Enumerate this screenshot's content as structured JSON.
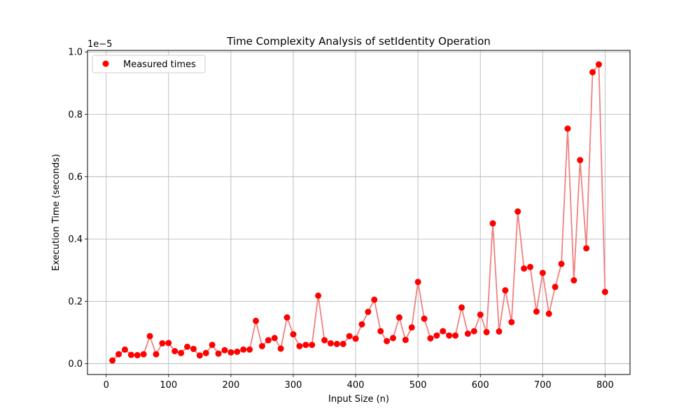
{
  "chart_data": {
    "type": "scatter",
    "title": "Time Complexity Analysis of setIdentity Operation",
    "xlabel": "Input Size (n)",
    "ylabel": "Execution Time (seconds)",
    "y_scale_label": "1e−5",
    "xlim": [
      -30,
      840
    ],
    "ylim": [
      -0.035,
      1.005
    ],
    "x_ticks": [
      0,
      100,
      200,
      300,
      400,
      500,
      600,
      700,
      800
    ],
    "y_ticks": [
      0.0,
      0.2,
      0.4,
      0.6,
      0.8,
      1.0
    ],
    "grid": true,
    "legend_position": "upper left",
    "line_color": "#f08080",
    "marker_color": "#ff0000",
    "series": [
      {
        "name": "Measured times",
        "x": [
          10,
          20,
          30,
          40,
          50,
          60,
          70,
          80,
          90,
          100,
          110,
          120,
          130,
          140,
          150,
          160,
          170,
          180,
          190,
          200,
          210,
          220,
          230,
          240,
          250,
          260,
          270,
          280,
          290,
          300,
          310,
          320,
          330,
          340,
          350,
          360,
          370,
          380,
          390,
          400,
          410,
          420,
          430,
          440,
          450,
          460,
          470,
          480,
          490,
          500,
          510,
          520,
          530,
          540,
          550,
          560,
          570,
          580,
          590,
          600,
          610,
          620,
          630,
          640,
          650,
          660,
          670,
          680,
          690,
          700,
          710,
          720,
          730,
          740,
          750,
          760,
          770,
          780,
          790,
          800
        ],
        "y": [
          0.01,
          0.03,
          0.045,
          0.028,
          0.027,
          0.03,
          0.088,
          0.03,
          0.065,
          0.066,
          0.04,
          0.034,
          0.054,
          0.047,
          0.026,
          0.034,
          0.06,
          0.032,
          0.043,
          0.036,
          0.038,
          0.045,
          0.045,
          0.137,
          0.056,
          0.075,
          0.082,
          0.048,
          0.148,
          0.094,
          0.056,
          0.06,
          0.06,
          0.218,
          0.075,
          0.065,
          0.063,
          0.063,
          0.088,
          0.08,
          0.126,
          0.166,
          0.205,
          0.104,
          0.072,
          0.082,
          0.148,
          0.076,
          0.116,
          0.262,
          0.144,
          0.081,
          0.09,
          0.104,
          0.09,
          0.09,
          0.18,
          0.096,
          0.104,
          0.157,
          0.101,
          0.45,
          0.103,
          0.235,
          0.133,
          0.488,
          0.305,
          0.31,
          0.167,
          0.291,
          0.16,
          0.246,
          0.32,
          0.754,
          0.267,
          0.653,
          0.37,
          0.935,
          0.96,
          0.23
        ]
      }
    ]
  }
}
